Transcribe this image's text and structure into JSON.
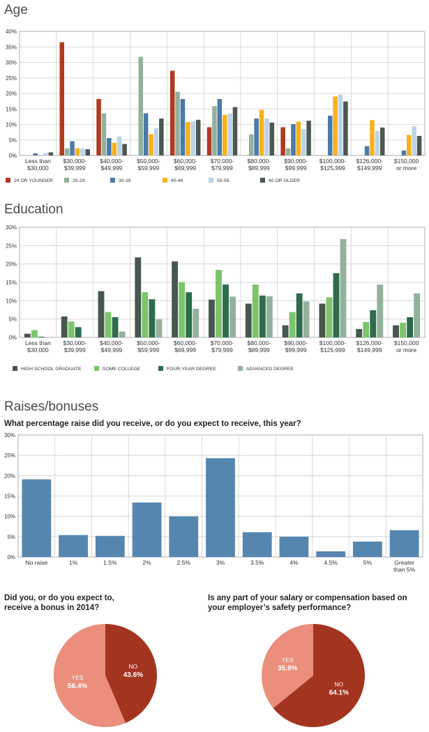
{
  "colors": {
    "age": [
      "#b03a22",
      "#93b19c",
      "#4a7aaa",
      "#f6b21b",
      "#bcd3e8",
      "#4c5750"
    ],
    "education": [
      "#46574d",
      "#7cc46b",
      "#2e6b4b",
      "#93b19c"
    ],
    "raises": "#5486b0",
    "pie_no": "#a3341f",
    "pie_yes": "#eb8f7c",
    "grid": "#cfcfcf",
    "axis_text": "#333333"
  },
  "sections": {
    "age_title": "Age",
    "education_title": "Education",
    "raises_title": "Raises/bonuses"
  },
  "chart_data": [
    {
      "id": "age",
      "type": "bar",
      "title": "Age",
      "categories": [
        [
          "Less than",
          "$30,000"
        ],
        [
          "$30,000-",
          "$39,999"
        ],
        [
          "$40,000-",
          "$49,999"
        ],
        [
          "$50,000-",
          "$59,999"
        ],
        [
          "$60,000-",
          "$69,999"
        ],
        [
          "$70,000-",
          "$79,999"
        ],
        [
          "$80,000-",
          "$89,999"
        ],
        [
          "$90,000-",
          "$99,999"
        ],
        [
          "$100,000-",
          "$125,999"
        ],
        [
          "$126,000-",
          "$149,999"
        ],
        [
          "$150,000",
          "or more"
        ]
      ],
      "yticks": [
        "0%",
        "5%",
        "10%",
        "15%",
        "20%",
        "25%",
        "30%",
        "35%",
        "40%"
      ],
      "ylim": [
        0,
        40
      ],
      "grid": true,
      "legend_position": "bottom",
      "series": [
        {
          "name": "24 OR YOUNGER",
          "values": [
            0,
            36.5,
            18.2,
            0,
            27.3,
            9.1,
            0,
            9.1,
            0,
            0,
            0
          ]
        },
        {
          "name": "25-29",
          "values": [
            0,
            2.3,
            13.6,
            31.8,
            20.5,
            15.9,
            6.8,
            2.3,
            0,
            0,
            0
          ]
        },
        {
          "name": "30-39",
          "values": [
            0.7,
            4.6,
            5.6,
            13.6,
            18.2,
            18.2,
            11.9,
            10.1,
            12.8,
            3.0,
            1.6
          ]
        },
        {
          "name": "40-49",
          "values": [
            0,
            2.3,
            4.1,
            6.9,
            10.8,
            13.1,
            14.7,
            10.9,
            19.0,
            11.4,
            6.6
          ]
        },
        {
          "name": "50-59",
          "values": [
            0.8,
            2.2,
            6.1,
            8.8,
            11.0,
            13.5,
            11.9,
            8.5,
            19.6,
            7.9,
            9.4
          ]
        },
        {
          "name": "60 OR OLDER",
          "values": [
            1.0,
            2.0,
            3.7,
            11.9,
            11.5,
            15.6,
            10.6,
            11.2,
            17.4,
            9.0,
            6.3
          ]
        }
      ]
    },
    {
      "id": "education",
      "type": "bar",
      "title": "Education",
      "categories": [
        [
          "Less than",
          "$30,000"
        ],
        [
          "$30,000-",
          "$39,999"
        ],
        [
          "$40,000-",
          "$49,999"
        ],
        [
          "$50,000-",
          "$59,999"
        ],
        [
          "$60,000-",
          "$69,999"
        ],
        [
          "$70,000-",
          "$79,999"
        ],
        [
          "$80,000-",
          "$89,999"
        ],
        [
          "$90,000-",
          "$99,999"
        ],
        [
          "$100,000-",
          "$125,999"
        ],
        [
          "$126,000-",
          "$149,999"
        ],
        [
          "$150,000",
          "or more"
        ]
      ],
      "yticks": [
        "0%",
        "5%",
        "10%",
        "15%",
        "20%",
        "25%",
        "30%"
      ],
      "ylim": [
        0,
        30
      ],
      "grid": true,
      "legend_position": "bottom",
      "series": [
        {
          "name": "HIGH SCHOOL GRADUATE",
          "values": [
            1.0,
            5.7,
            12.6,
            21.8,
            20.7,
            10.3,
            9.2,
            3.3,
            9.2,
            2.3,
            3.3
          ]
        },
        {
          "name": "SOME COLLEGE",
          "values": [
            2.0,
            4.3,
            6.9,
            12.3,
            15.1,
            18.4,
            14.4,
            6.9,
            10.9,
            4.2,
            4.0
          ]
        },
        {
          "name": "FOUR-YEAR DEGREE",
          "values": [
            0.2,
            2.8,
            5.5,
            10.4,
            12.3,
            14.4,
            11.4,
            12.0,
            17.5,
            7.4,
            5.5
          ]
        },
        {
          "name": "ADVANCED DEGREE",
          "values": [
            0.1,
            0,
            1.6,
            4.9,
            7.8,
            11.1,
            11.2,
            9.8,
            26.8,
            14.4,
            12.0
          ]
        }
      ]
    },
    {
      "id": "raises",
      "type": "bar",
      "title": "What percentage raise did you receive, or do you expect to receive, this year?",
      "categories": [
        [
          "No raise"
        ],
        [
          "1%"
        ],
        [
          "1.5%"
        ],
        [
          "2%"
        ],
        [
          "2.5%"
        ],
        [
          "3%"
        ],
        [
          "3.5%"
        ],
        [
          "4%"
        ],
        [
          "4.5%"
        ],
        [
          "5%"
        ],
        [
          "Greater",
          "than 5%"
        ]
      ],
      "yticks": [
        "0%",
        "5%",
        "10%",
        "15%",
        "20%",
        "25%",
        "30%"
      ],
      "ylim": [
        0,
        30
      ],
      "grid": true,
      "series": [
        {
          "values": [
            19.1,
            5.4,
            5.2,
            13.4,
            10.0,
            24.3,
            6.1,
            5.0,
            1.4,
            3.8,
            6.6
          ]
        }
      ]
    },
    {
      "id": "bonus",
      "type": "pie",
      "title": "Did you, or do you expect to, receive a bonus in 2014?",
      "title_lines": [
        "Did you, or do you expect to,",
        "receive a bonus in 2014?"
      ],
      "slices": [
        {
          "label": "NO",
          "value": 43.6,
          "display": "43.6%"
        },
        {
          "label": "YES",
          "value": 56.4,
          "display": "56.4%"
        }
      ]
    },
    {
      "id": "safety",
      "type": "pie",
      "title": "Is any part of your salary or compensation based on your employer's safety performance?",
      "title_lines": [
        "Is any part of your salary or compensation based on",
        "your employer’s safety performance?"
      ],
      "slices": [
        {
          "label": "NO",
          "value": 64.1,
          "display": "64.1%"
        },
        {
          "label": "YES",
          "value": 35.9,
          "display": "35.9%"
        }
      ]
    }
  ]
}
